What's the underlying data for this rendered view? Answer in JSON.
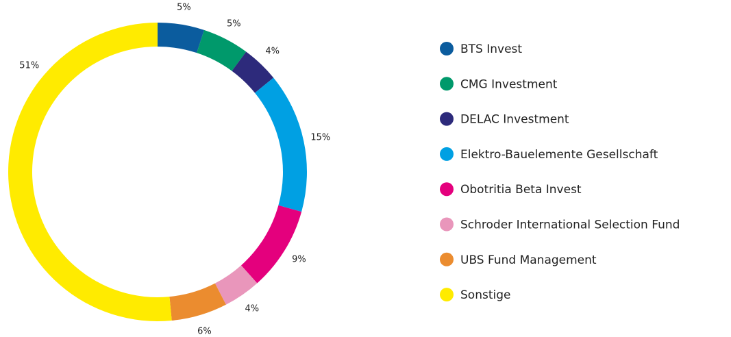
{
  "chart_data": {
    "type": "donut",
    "categories": [
      "BTS Invest",
      "CMG Investment",
      "DELAC Investment",
      "Elektro-Bauelemente Gesellschaft",
      "Obotritia Beta Invest",
      "Schroder International Selection Fund",
      "UBS Fund Management",
      "Sonstige"
    ],
    "values": [
      5,
      5,
      4,
      15,
      9,
      4,
      6,
      51
    ],
    "value_labels": [
      "5%",
      "5%",
      "4%",
      "15%",
      "9%",
      "4%",
      "6%",
      "51%"
    ],
    "colors": [
      "#0b5c9e",
      "#00996b",
      "#2d2a7b",
      "#00a0e3",
      "#e4007d",
      "#e996bb",
      "#eb8c2f",
      "#ffeb00"
    ]
  }
}
